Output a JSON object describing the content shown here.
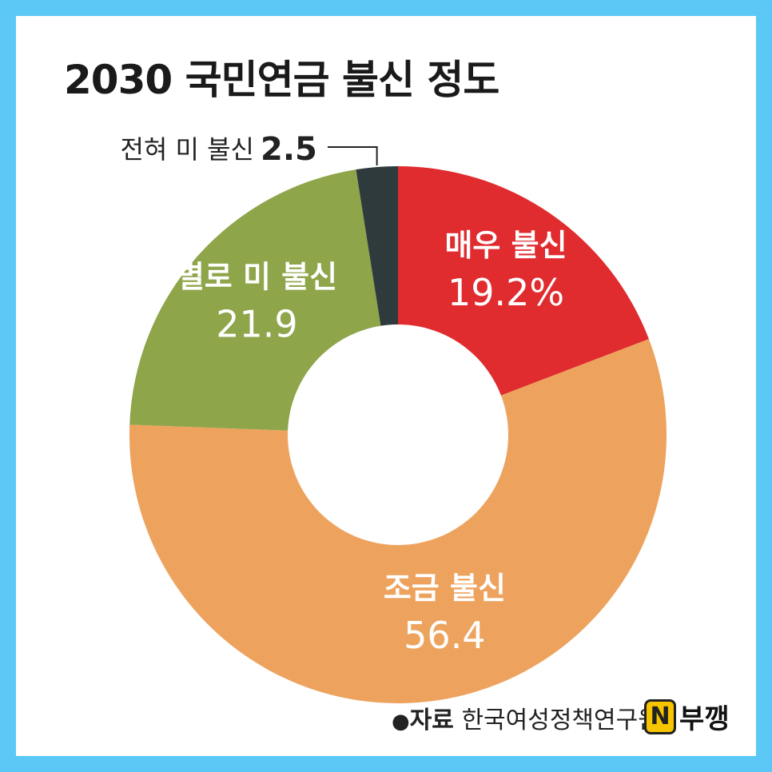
{
  "chart_data": {
    "type": "pie",
    "title": "2030 국민연금 불신 정도",
    "categories": [
      "매우 불신",
      "조금 불신",
      "별로 미 불신",
      "전혀 미 불신"
    ],
    "values": [
      19.2,
      56.4,
      21.9,
      2.5
    ],
    "value_labels": [
      "19.2%",
      "56.4",
      "21.9",
      "2.5"
    ],
    "colors": [
      "#e02b2f",
      "#eda35e",
      "#8ea54a",
      "#2e3a3c"
    ],
    "donut": true
  },
  "source": {
    "bullet": "●",
    "label": "자료",
    "text": "한국여성정책연구원"
  },
  "logo": {
    "badge": "N",
    "text": "부깽"
  }
}
